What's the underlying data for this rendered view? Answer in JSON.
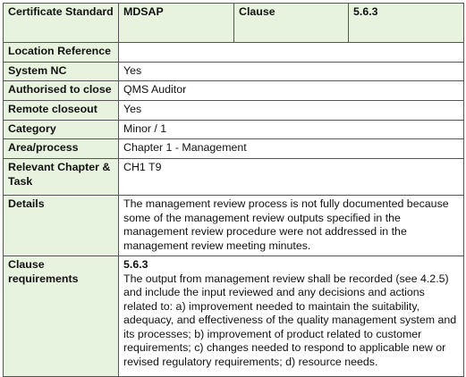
{
  "table": {
    "header": [
      "Certificate Standard",
      "MDSAP",
      "Clause",
      "5.6.3"
    ],
    "rows": [
      {
        "label": "Location Reference"
      },
      {
        "label": "System NC",
        "value": "Yes"
      },
      {
        "label": "Authorised to close",
        "value": "QMS Auditor"
      },
      {
        "label": "Remote closeout",
        "value": "Yes"
      },
      {
        "label": "Category",
        "value": "Minor / 1"
      },
      {
        "label": "Area/process",
        "value": "Chapter 1 - Management"
      },
      {
        "label": "Relevant Chapter & Task",
        "value": "CH1 T9"
      },
      {
        "label": "Details",
        "value": "The management review process is not fully documented because some of the management review outputs specified in the management review procedure were not addressed in the management review meeting minutes."
      },
      {
        "label": "Clause requirements",
        "value_heading": "5.6.3",
        "value": "The output from management review shall be recorded (see 4.2.5) and include the input reviewed and any decisions and actions related to:  a) improvement needed to maintain the suitability, adequacy, and effectiveness of the quality management system and its processes;  b) improvement of product related to customer requirements;  c) changes needed to respond to applicable new or revised regulatory requirements;  d) resource needs."
      }
    ]
  }
}
